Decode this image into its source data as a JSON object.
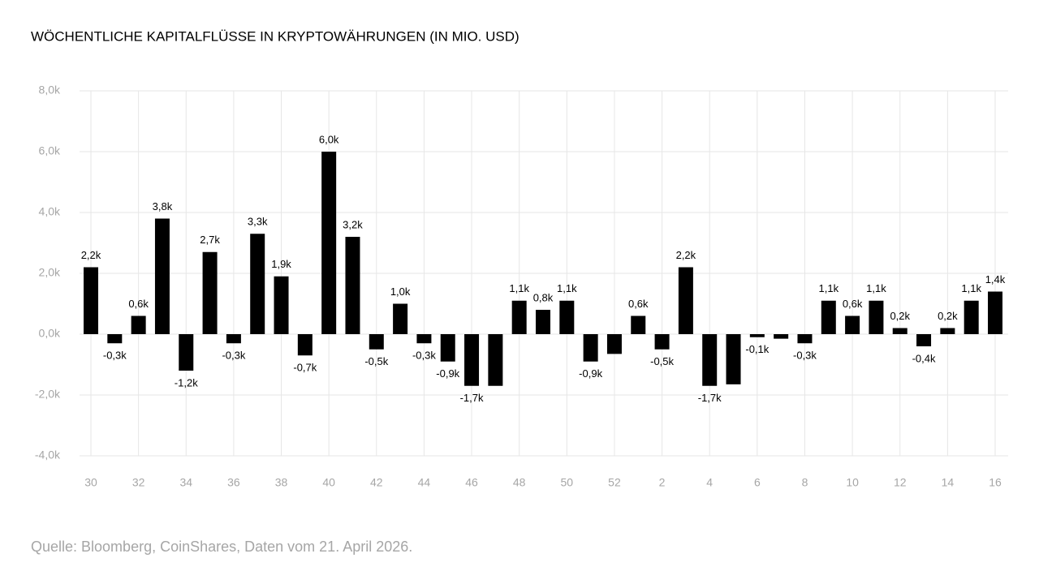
{
  "chart_data": {
    "type": "bar",
    "title": "WÖCHENTLICHE KAPITALFLÜSSE IN KRYPTOWÄHRUNGEN (IN MIO. USD)",
    "source": "Quelle: Bloomberg, CoinShares, Daten vom 21. April 2026.",
    "categories": [
      "30",
      null,
      "32",
      null,
      "34",
      null,
      "36",
      null,
      "38",
      null,
      "40",
      null,
      "42",
      null,
      "44",
      null,
      "46",
      null,
      "48",
      null,
      "50",
      null,
      "52",
      null,
      "2",
      null,
      "4",
      null,
      "6",
      null,
      "8",
      null,
      "10",
      null,
      "12",
      null,
      "14",
      null,
      "16"
    ],
    "values": [
      2200,
      -300,
      600,
      3800,
      -1200,
      2700,
      -300,
      3300,
      1900,
      -700,
      6000,
      3200,
      -500,
      1000,
      -300,
      -900,
      -1700,
      -1700,
      1100,
      800,
      1100,
      -900,
      -650,
      600,
      -500,
      2200,
      -1700,
      -1650,
      -100,
      -150,
      -300,
      1100,
      600,
      1100,
      200,
      -400,
      200,
      1100,
      1400
    ],
    "value_labels": [
      "2,2k",
      "-0,3k",
      "0,6k",
      "3,8k",
      "-1,2k",
      "2,7k",
      "-0,3k",
      "3,3k",
      "1,9k",
      "-0,7k",
      "6,0k",
      "3,2k",
      "-0,5k",
      "1,0k",
      "-0,3k",
      "-0,9k",
      "-1,7k",
      null,
      "1,1k",
      "0,8k",
      "1,1k",
      "-0,9k",
      null,
      "0,6k",
      "-0,5k",
      "2,2k",
      "-1,7k",
      null,
      "-0,1k",
      null,
      "-0,3k",
      "1,1k",
      "0,6k",
      "1,1k",
      "0,2k",
      "-0,4k",
      "0,2k",
      "1,1k",
      "1,4k"
    ],
    "color": "#000000",
    "ylim": [
      -4000,
      8000
    ],
    "yticks": [
      {
        "value": -4000,
        "label": "-4,0k"
      },
      {
        "value": -2000,
        "label": "-2,0k"
      },
      {
        "value": 0,
        "label": "0,0k"
      },
      {
        "value": 2000,
        "label": "2,0k"
      },
      {
        "value": 4000,
        "label": "4,0k"
      },
      {
        "value": 6000,
        "label": "6,0k"
      },
      {
        "value": 8000,
        "label": "8,0k"
      }
    ],
    "grid": true
  }
}
